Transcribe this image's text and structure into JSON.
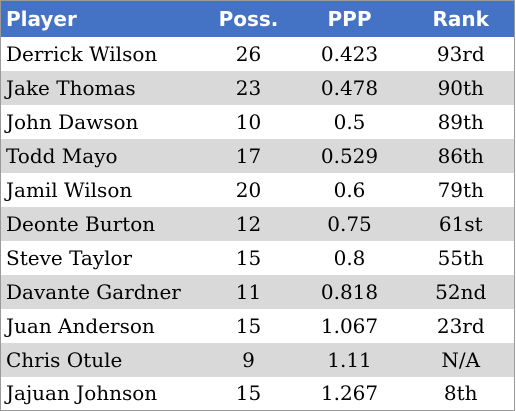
{
  "table": {
    "headers": {
      "player": "Player",
      "poss": "Poss.",
      "ppp": "PPP",
      "rank": "Rank"
    },
    "rows": [
      {
        "player": "Derrick Wilson",
        "poss": "26",
        "ppp": "0.423",
        "rank": "93rd"
      },
      {
        "player": "Jake Thomas",
        "poss": "23",
        "ppp": "0.478",
        "rank": "90th"
      },
      {
        "player": "John Dawson",
        "poss": "10",
        "ppp": "0.5",
        "rank": "89th"
      },
      {
        "player": "Todd Mayo",
        "poss": "17",
        "ppp": "0.529",
        "rank": "86th"
      },
      {
        "player": "Jamil Wilson",
        "poss": "20",
        "ppp": "0.6",
        "rank": "79th"
      },
      {
        "player": "Deonte Burton",
        "poss": "12",
        "ppp": "0.75",
        "rank": "61st"
      },
      {
        "player": "Steve Taylor",
        "poss": "15",
        "ppp": "0.8",
        "rank": "55th"
      },
      {
        "player": "Davante Gardner",
        "poss": "11",
        "ppp": "0.818",
        "rank": "52nd"
      },
      {
        "player": "Juan Anderson",
        "poss": "15",
        "ppp": "1.067",
        "rank": "23rd"
      },
      {
        "player": "Chris Otule",
        "poss": "9",
        "ppp": "1.11",
        "rank": "N/A"
      },
      {
        "player": "Jajuan Johnson",
        "poss": "15",
        "ppp": "1.267",
        "rank": "8th"
      }
    ]
  },
  "colors": {
    "header_bg": "#4472c4",
    "header_text": "#ffffff",
    "band_light": "#ffffff",
    "band_gray": "#d9d9d9"
  }
}
